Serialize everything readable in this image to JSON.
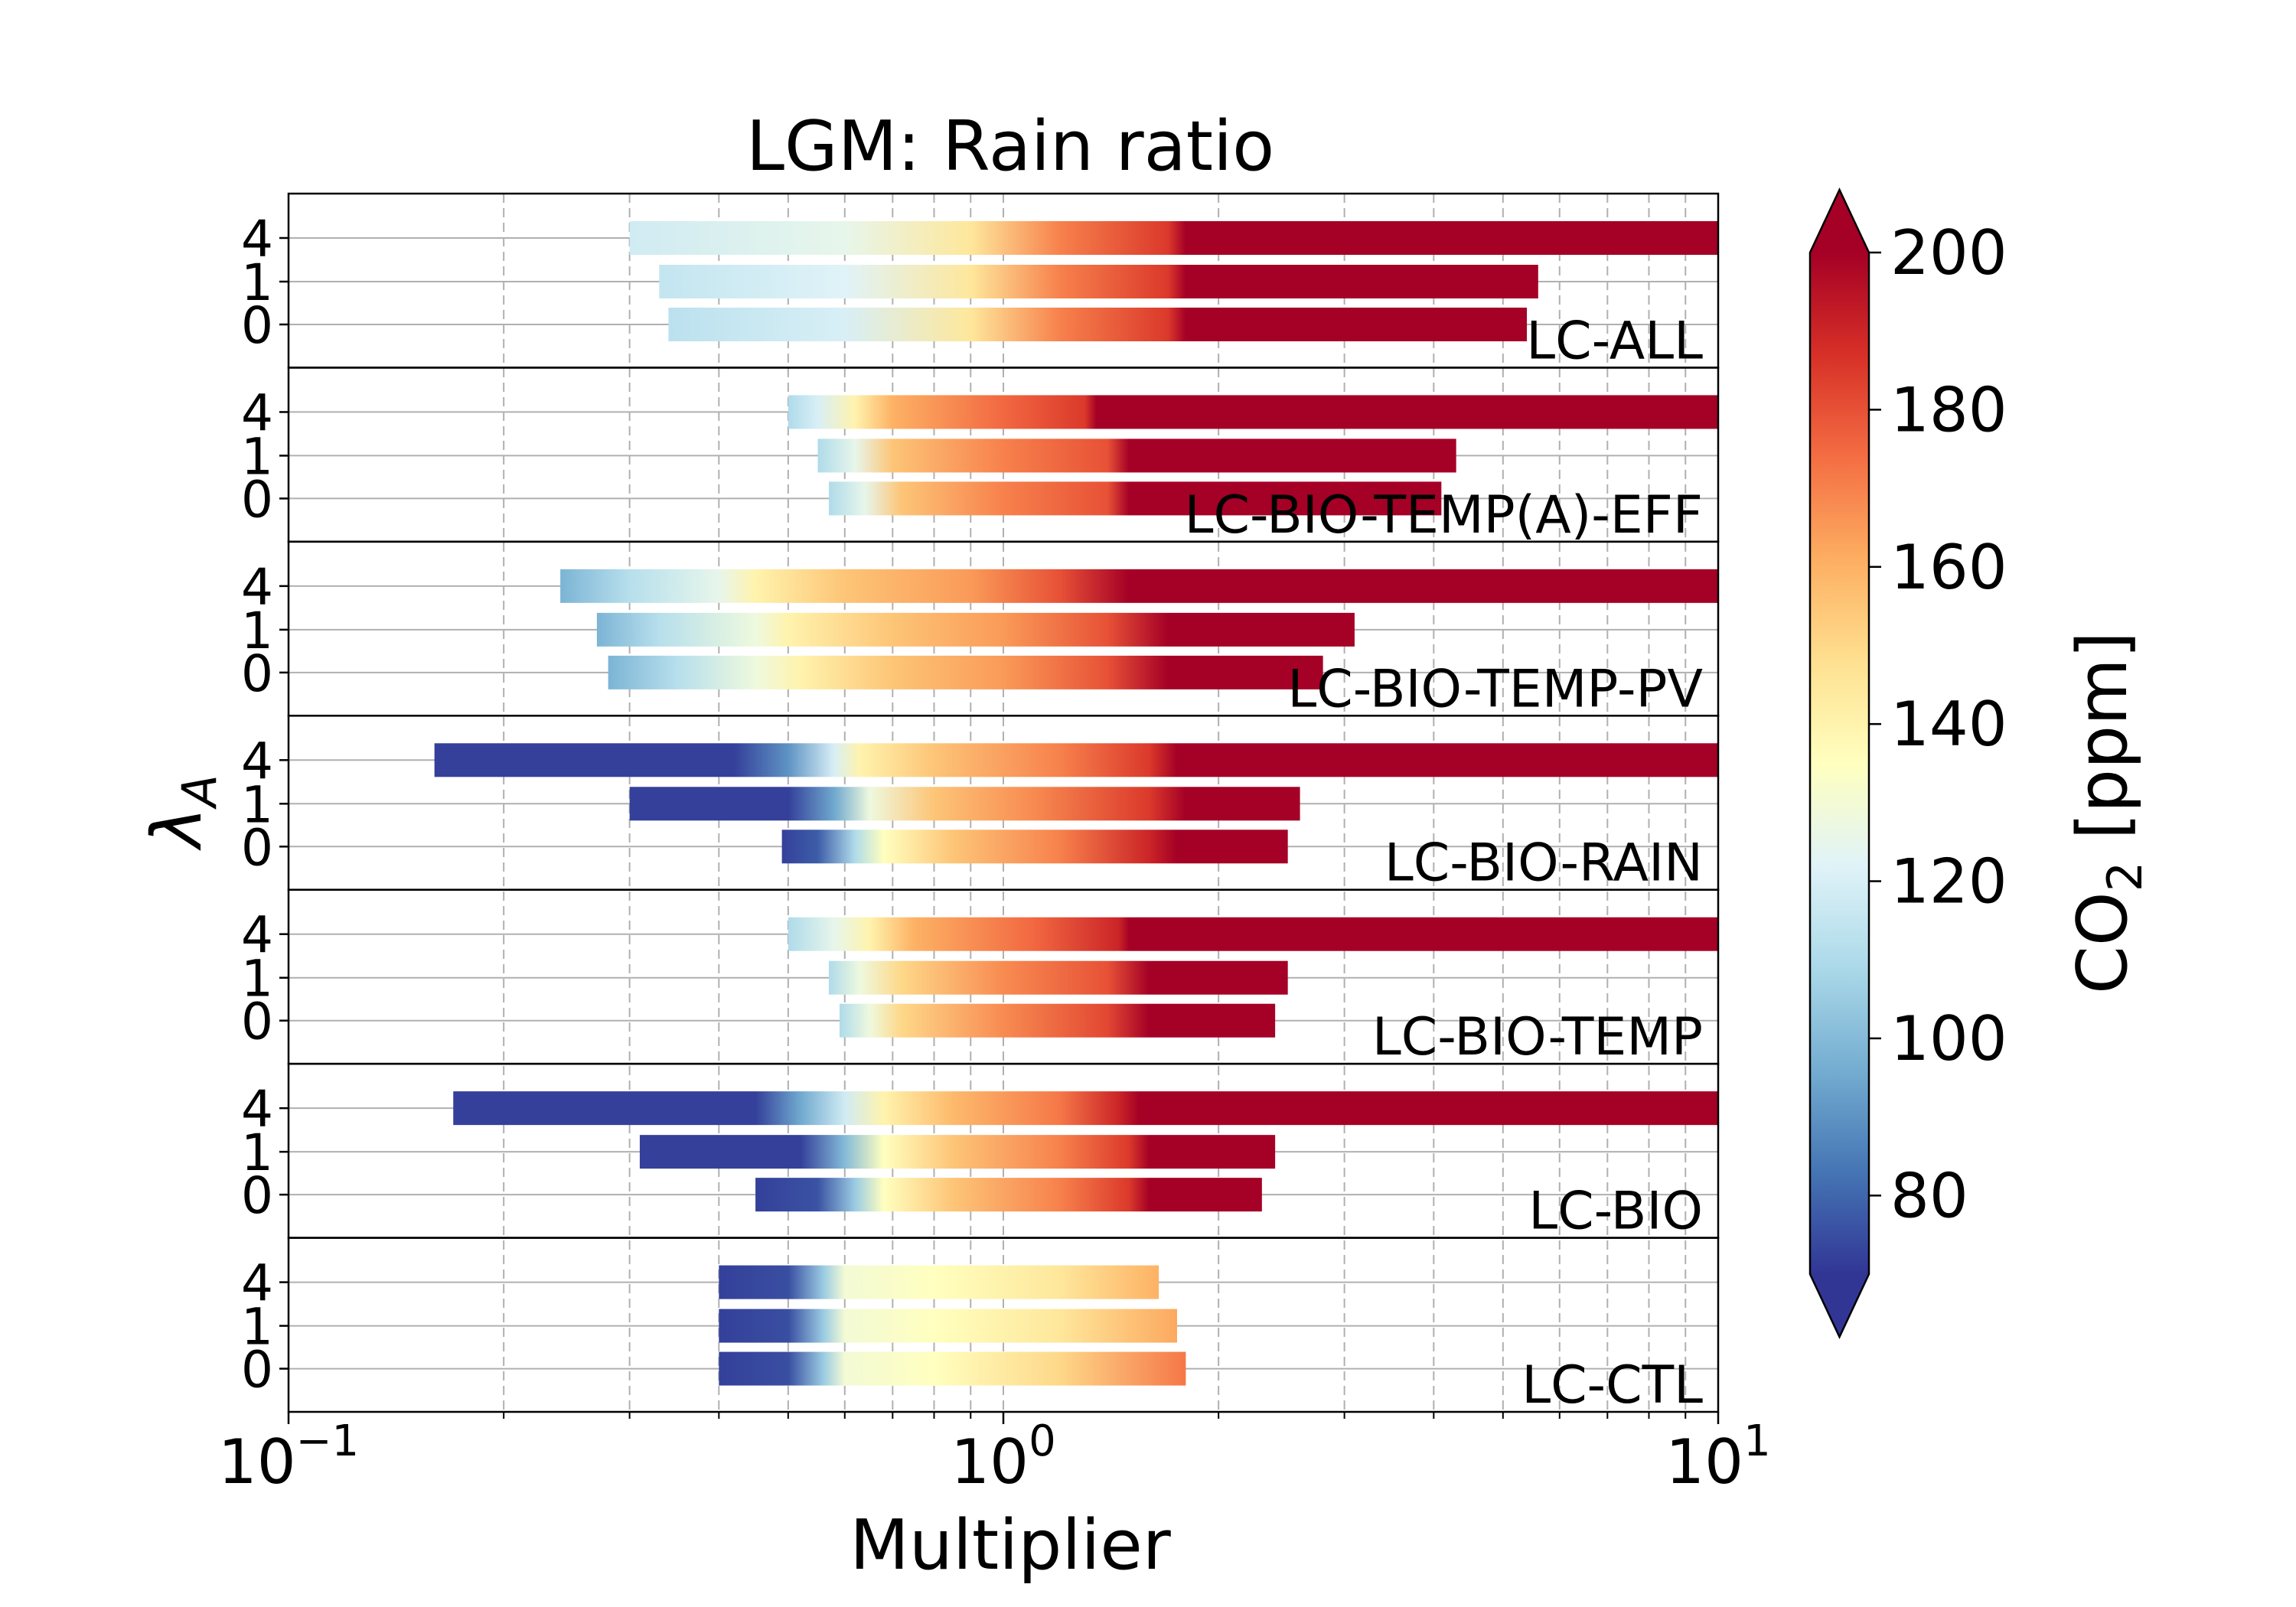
{
  "chart_data": {
    "type": "bar",
    "title": "LGM: Rain ratio",
    "xlabel": "Multiplier",
    "ylabel": "λ_A",
    "xscale": "log",
    "xlim": [
      0.1,
      10
    ],
    "x_ticks": [
      {
        "value": 0.1,
        "base": "10",
        "exp": "−1"
      },
      {
        "value": 1,
        "base": "10",
        "exp": "0"
      },
      {
        "value": 10,
        "base": "10",
        "exp": "1"
      }
    ],
    "lambda_labels": [
      "4",
      "1",
      "0"
    ],
    "grid": true,
    "colorbar": {
      "label_main": "CO",
      "label_sub": "2",
      "label_tail": " [ppm]",
      "min": 70,
      "max": 200,
      "ticks": [
        80,
        100,
        120,
        140,
        160,
        180,
        200
      ],
      "extend": "both",
      "colormap": "RdYlBu_r",
      "colors": [
        "#313695",
        "#4575b4",
        "#74add1",
        "#abd9e9",
        "#e0f3f8",
        "#ffffbf",
        "#fee090",
        "#fdae61",
        "#f46d43",
        "#d73027",
        "#a50026"
      ]
    },
    "panels": [
      {
        "name": "LC-ALL",
        "bars": [
          {
            "lambda": "4",
            "xmin": 0.3,
            "xmax": 10,
            "stops": [
              [
                0.3,
                118
              ],
              [
                0.6,
                125
              ],
              [
                0.9,
                145
              ],
              [
                1.2,
                170
              ],
              [
                1.7,
                185
              ],
              [
                1.8,
                200
              ],
              [
                10,
                200
              ]
            ]
          },
          {
            "lambda": "1",
            "xmin": 0.33,
            "xmax": 5.6,
            "stops": [
              [
                0.33,
                115
              ],
              [
                0.6,
                122
              ],
              [
                0.9,
                145
              ],
              [
                1.2,
                170
              ],
              [
                1.7,
                185
              ],
              [
                1.8,
                200
              ],
              [
                5.6,
                200
              ]
            ]
          },
          {
            "lambda": "0",
            "xmin": 0.34,
            "xmax": 5.4,
            "stops": [
              [
                0.34,
                113
              ],
              [
                0.6,
                120
              ],
              [
                0.9,
                145
              ],
              [
                1.2,
                170
              ],
              [
                1.7,
                185
              ],
              [
                1.8,
                200
              ],
              [
                5.4,
                200
              ]
            ]
          }
        ]
      },
      {
        "name": "LC-BIO-TEMP(A)-EFF",
        "bars": [
          {
            "lambda": "4",
            "xmin": 0.5,
            "xmax": 10,
            "stops": [
              [
                0.5,
                110
              ],
              [
                0.55,
                120
              ],
              [
                0.62,
                140
              ],
              [
                0.7,
                160
              ],
              [
                1.0,
                175
              ],
              [
                1.3,
                185
              ],
              [
                1.35,
                200
              ],
              [
                10,
                200
              ]
            ]
          },
          {
            "lambda": "1",
            "xmin": 0.55,
            "xmax": 4.3,
            "stops": [
              [
                0.55,
                110
              ],
              [
                0.62,
                125
              ],
              [
                0.7,
                155
              ],
              [
                1.0,
                170
              ],
              [
                1.4,
                180
              ],
              [
                1.5,
                200
              ],
              [
                4.3,
                200
              ]
            ]
          },
          {
            "lambda": "0",
            "xmin": 0.57,
            "xmax": 4.1,
            "stops": [
              [
                0.57,
                110
              ],
              [
                0.64,
                125
              ],
              [
                0.72,
                155
              ],
              [
                1.0,
                170
              ],
              [
                1.4,
                180
              ],
              [
                1.5,
                200
              ],
              [
                4.1,
                200
              ]
            ]
          }
        ]
      },
      {
        "name": "LC-BIO-TEMP-PV",
        "bars": [
          {
            "lambda": "4",
            "xmin": 0.24,
            "xmax": 10,
            "stops": [
              [
                0.24,
                98
              ],
              [
                0.3,
                112
              ],
              [
                0.4,
                125
              ],
              [
                0.45,
                140
              ],
              [
                0.6,
                155
              ],
              [
                0.9,
                165
              ],
              [
                1.2,
                180
              ],
              [
                1.5,
                200
              ],
              [
                10,
                200
              ]
            ]
          },
          {
            "lambda": "1",
            "xmin": 0.27,
            "xmax": 3.1,
            "stops": [
              [
                0.27,
                98
              ],
              [
                0.33,
                112
              ],
              [
                0.45,
                128
              ],
              [
                0.5,
                140
              ],
              [
                0.7,
                155
              ],
              [
                1.0,
                165
              ],
              [
                1.4,
                180
              ],
              [
                1.7,
                200
              ],
              [
                3.1,
                200
              ]
            ]
          },
          {
            "lambda": "0",
            "xmin": 0.28,
            "xmax": 2.8,
            "stops": [
              [
                0.28,
                98
              ],
              [
                0.35,
                112
              ],
              [
                0.45,
                128
              ],
              [
                0.52,
                140
              ],
              [
                0.7,
                155
              ],
              [
                1.0,
                165
              ],
              [
                1.4,
                180
              ],
              [
                1.7,
                200
              ],
              [
                2.8,
                200
              ]
            ]
          }
        ]
      },
      {
        "name": "LC-BIO-RAIN",
        "bars": [
          {
            "lambda": "4",
            "xmin": 0.16,
            "xmax": 10,
            "stops": [
              [
                0.16,
                72
              ],
              [
                0.42,
                72
              ],
              [
                0.5,
                90
              ],
              [
                0.58,
                120
              ],
              [
                0.63,
                140
              ],
              [
                0.8,
                155
              ],
              [
                1.2,
                170
              ],
              [
                1.6,
                185
              ],
              [
                1.75,
                200
              ],
              [
                10,
                200
              ]
            ]
          },
          {
            "lambda": "1",
            "xmin": 0.3,
            "xmax": 2.6,
            "stops": [
              [
                0.3,
                72
              ],
              [
                0.5,
                72
              ],
              [
                0.58,
                95
              ],
              [
                0.65,
                128
              ],
              [
                0.8,
                155
              ],
              [
                1.1,
                168
              ],
              [
                1.6,
                185
              ],
              [
                1.8,
                200
              ],
              [
                2.6,
                200
              ]
            ]
          },
          {
            "lambda": "0",
            "xmin": 0.49,
            "xmax": 2.5,
            "stops": [
              [
                0.49,
                72
              ],
              [
                0.55,
                78
              ],
              [
                0.62,
                110
              ],
              [
                0.68,
                135
              ],
              [
                0.85,
                155
              ],
              [
                1.2,
                170
              ],
              [
                1.6,
                190
              ],
              [
                1.75,
                200
              ],
              [
                2.5,
                200
              ]
            ]
          }
        ]
      },
      {
        "name": "LC-BIO-TEMP",
        "bars": [
          {
            "lambda": "4",
            "xmin": 0.5,
            "xmax": 10,
            "stops": [
              [
                0.5,
                110
              ],
              [
                0.58,
                125
              ],
              [
                0.65,
                140
              ],
              [
                0.75,
                160
              ],
              [
                1.1,
                175
              ],
              [
                1.45,
                190
              ],
              [
                1.5,
                200
              ],
              [
                10,
                200
              ]
            ]
          },
          {
            "lambda": "1",
            "xmin": 0.57,
            "xmax": 2.5,
            "stops": [
              [
                0.57,
                110
              ],
              [
                0.63,
                128
              ],
              [
                0.72,
                150
              ],
              [
                1.0,
                168
              ],
              [
                1.4,
                180
              ],
              [
                1.6,
                200
              ],
              [
                2.5,
                200
              ]
            ]
          },
          {
            "lambda": "0",
            "xmin": 0.59,
            "xmax": 2.4,
            "stops": [
              [
                0.59,
                110
              ],
              [
                0.65,
                128
              ],
              [
                0.72,
                150
              ],
              [
                1.0,
                168
              ],
              [
                1.4,
                182
              ],
              [
                1.6,
                200
              ],
              [
                2.4,
                200
              ]
            ]
          }
        ]
      },
      {
        "name": "LC-BIO",
        "bars": [
          {
            "lambda": "4",
            "xmin": 0.17,
            "xmax": 10,
            "stops": [
              [
                0.17,
                72
              ],
              [
                0.45,
                72
              ],
              [
                0.52,
                95
              ],
              [
                0.6,
                118
              ],
              [
                0.68,
                140
              ],
              [
                0.85,
                158
              ],
              [
                1.2,
                172
              ],
              [
                1.45,
                190
              ],
              [
                1.55,
                200
              ],
              [
                10,
                200
              ]
            ]
          },
          {
            "lambda": "1",
            "xmin": 0.31,
            "xmax": 2.4,
            "stops": [
              [
                0.31,
                72
              ],
              [
                0.52,
                72
              ],
              [
                0.6,
                100
              ],
              [
                0.68,
                135
              ],
              [
                0.85,
                155
              ],
              [
                1.2,
                170
              ],
              [
                1.5,
                185
              ],
              [
                1.6,
                200
              ],
              [
                2.4,
                200
              ]
            ]
          },
          {
            "lambda": "0",
            "xmin": 0.45,
            "xmax": 2.3,
            "stops": [
              [
                0.45,
                72
              ],
              [
                0.55,
                76
              ],
              [
                0.62,
                105
              ],
              [
                0.68,
                135
              ],
              [
                0.85,
                155
              ],
              [
                1.2,
                170
              ],
              [
                1.5,
                185
              ],
              [
                1.6,
                200
              ],
              [
                2.3,
                200
              ]
            ]
          }
        ]
      },
      {
        "name": "LC-CTL",
        "bars": [
          {
            "lambda": "4",
            "xmin": 0.4,
            "xmax": 1.65,
            "stops": [
              [
                0.4,
                72
              ],
              [
                0.5,
                75
              ],
              [
                0.56,
                105
              ],
              [
                0.6,
                130
              ],
              [
                0.8,
                135
              ],
              [
                1.2,
                145
              ],
              [
                1.65,
                160
              ]
            ]
          },
          {
            "lambda": "1",
            "xmin": 0.4,
            "xmax": 1.75,
            "stops": [
              [
                0.4,
                72
              ],
              [
                0.5,
                75
              ],
              [
                0.56,
                105
              ],
              [
                0.6,
                130
              ],
              [
                0.8,
                135
              ],
              [
                1.2,
                145
              ],
              [
                1.75,
                162
              ]
            ]
          },
          {
            "lambda": "0",
            "xmin": 0.4,
            "xmax": 1.8,
            "stops": [
              [
                0.4,
                72
              ],
              [
                0.5,
                75
              ],
              [
                0.56,
                105
              ],
              [
                0.6,
                130
              ],
              [
                0.8,
                135
              ],
              [
                1.2,
                150
              ],
              [
                1.8,
                172
              ]
            ]
          }
        ]
      }
    ]
  }
}
